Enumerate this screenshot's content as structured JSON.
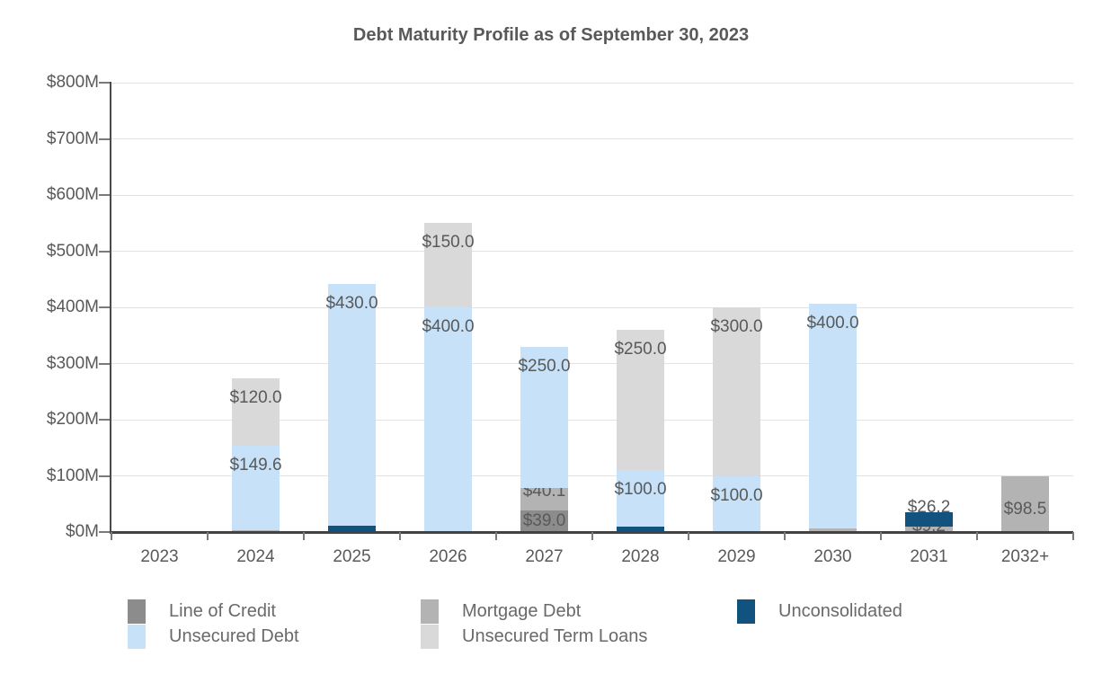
{
  "title": "Debt Maturity Profile as of September 30, 2023",
  "chart_data": {
    "type": "bar",
    "stacked": true,
    "title": "Debt Maturity Profile as of September 30, 2023",
    "categories": [
      "2023",
      "2024",
      "2025",
      "2026",
      "2027",
      "2028",
      "2029",
      "2030",
      "2031",
      "2032+"
    ],
    "series": [
      {
        "name": "Line of Credit",
        "color": "#8c8c8c",
        "values": [
          0,
          0,
          0,
          0,
          39.0,
          0,
          0,
          0,
          0,
          0
        ]
      },
      {
        "name": "Mortgage Debt",
        "color": "#b3b3b3",
        "values": [
          0,
          3.6,
          0,
          0,
          40.1,
          0,
          0,
          6.7,
          9.2,
          98.5
        ]
      },
      {
        "name": "Unconsolidated",
        "color": "#11527e",
        "values": [
          0,
          0,
          11.5,
          0,
          0,
          10.4,
          0,
          0,
          26.2,
          0
        ]
      },
      {
        "name": "Unsecured Debt",
        "color": "#c7e1f8",
        "values": [
          0,
          149.6,
          430.0,
          400.0,
          250.0,
          100.0,
          100.0,
          400.0,
          0,
          0
        ]
      },
      {
        "name": "Unsecured Term Loans",
        "color": "#d9d9d9",
        "values": [
          0,
          120.0,
          0,
          150.0,
          0,
          250.0,
          300.0,
          0,
          0,
          0
        ]
      }
    ],
    "bar_totals": [
      0,
      273.2,
      441.5,
      550.0,
      329.1,
      360.4,
      400.0,
      406.7,
      35.4,
      98.5
    ],
    "bar_label_format": "$#.1",
    "segment_labels_visible": [
      "$3.6",
      "$149.6",
      "$120.0",
      "$11.5",
      "$430.0",
      "$400.0",
      "$150.0",
      "$39.0",
      "$40.1",
      "$250.0",
      "$10.4",
      "$100.0",
      "$250.0",
      "$100.0",
      "$300.0",
      "$6.7",
      "$400.0",
      "$9.2",
      "$26.2",
      "$98.5"
    ],
    "xlabel": "",
    "ylabel": "",
    "ylim": [
      0,
      800
    ],
    "y_tick_labels": [
      "$0M",
      "$100M",
      "$200M",
      "$300M",
      "$400M",
      "$500M",
      "$600M",
      "$700M",
      "$800M"
    ],
    "grid": true,
    "legend_position": "bottom"
  },
  "legend": {
    "rows": [
      [
        "Line of Credit",
        "Mortgage Debt",
        "Unconsolidated"
      ],
      [
        "Unsecured Debt",
        "Unsecured Term Loans"
      ]
    ]
  }
}
